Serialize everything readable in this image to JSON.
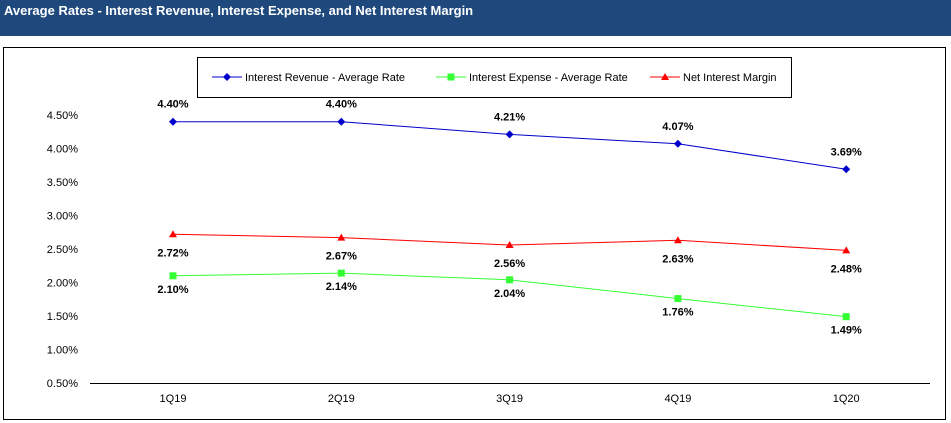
{
  "header": {
    "title": "Average Rates - Interest Revenue, Interest Expense, and Net Interest Margin"
  },
  "chart_data": {
    "type": "line",
    "title": "Average Rates - Interest Revenue, Interest Expense, and Net Interest Margin",
    "categories": [
      "1Q19",
      "2Q19",
      "3Q19",
      "4Q19",
      "1Q20"
    ],
    "ylim": [
      0.5,
      4.5
    ],
    "yticks": [
      "0.50%",
      "1.00%",
      "1.50%",
      "2.00%",
      "2.50%",
      "3.00%",
      "3.50%",
      "4.00%",
      "4.50%"
    ],
    "legend_position": "top-center",
    "grid": false,
    "series": [
      {
        "name": "Interest Revenue - Average Rate",
        "color": "#0000CC",
        "marker": "diamond",
        "values": [
          4.4,
          4.4,
          4.21,
          4.07,
          3.69
        ],
        "labels": [
          "4.40%",
          "4.40%",
          "4.21%",
          "4.07%",
          "3.69%"
        ]
      },
      {
        "name": "Interest Expense - Average Rate",
        "color": "#33FF33",
        "marker": "square",
        "values": [
          2.1,
          2.14,
          2.04,
          1.76,
          1.49
        ],
        "labels": [
          "2.10%",
          "2.14%",
          "2.04%",
          "1.76%",
          "1.49%"
        ]
      },
      {
        "name": "Net Interest Margin",
        "color": "#FF0000",
        "marker": "triangle",
        "values": [
          2.72,
          2.67,
          2.56,
          2.63,
          2.48
        ],
        "labels": [
          "2.72%",
          "2.67%",
          "2.56%",
          "2.63%",
          "2.48%"
        ]
      }
    ]
  }
}
